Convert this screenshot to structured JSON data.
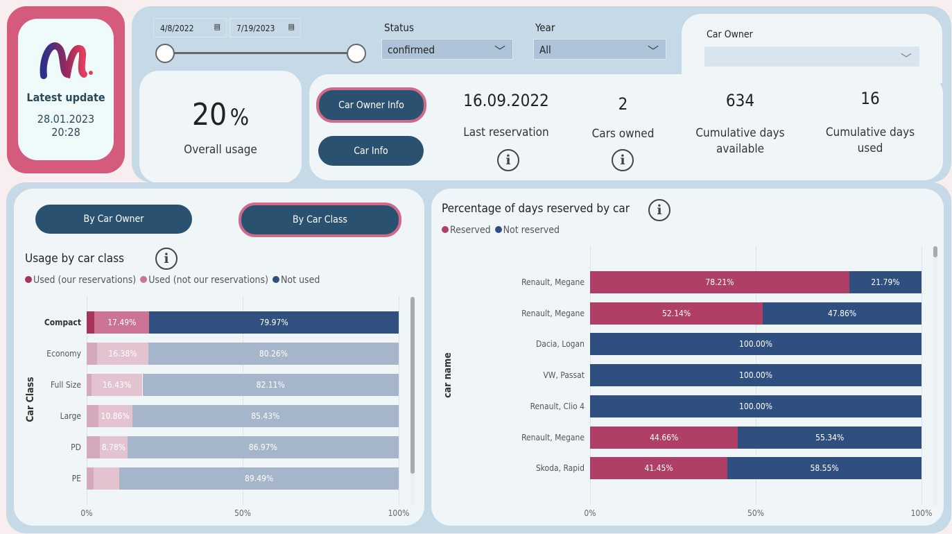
{
  "latest": {
    "label": "Latest update",
    "date": "28.01.2023",
    "time": "20:28"
  },
  "filters": {
    "date_from": "4/8/2022",
    "date_to": "7/19/2023",
    "status_label": "Status",
    "status_value": "confirmed",
    "year_label": "Year",
    "year_value": "All",
    "owner_label": "Car Owner",
    "owner_value": ""
  },
  "usage": {
    "value": "20",
    "unit": "%",
    "label": "Overall usage"
  },
  "buttons": {
    "owner_info": "Car Owner Info",
    "car_info": "Car Info",
    "by_owner": "By Car Owner",
    "by_class": "By Car Class"
  },
  "kpis": [
    {
      "value": "16.09.2022",
      "label": "Last reservation"
    },
    {
      "value": "2",
      "label": "Cars owned"
    },
    {
      "value": "634",
      "label": "Cumulative days available"
    },
    {
      "value": "16",
      "label": "Cumulative days used"
    }
  ],
  "colors": {
    "used_ours": "#a8345a",
    "used_other": "#cc7394",
    "not_used": "#30507f",
    "reserved": "#b03f66",
    "not_reserved": "#2f4f80"
  },
  "chart_data": [
    {
      "type": "bar",
      "stacked": "100%",
      "orientation": "horizontal",
      "title": "Usage by car class",
      "ylabel": "Car Class",
      "xlabel": "",
      "xlim": [
        0,
        100
      ],
      "xticks": [
        "0%",
        "50%",
        "100%"
      ],
      "legend": "top-left",
      "categories": [
        "Compact",
        "Economy",
        "Full Size",
        "Large",
        "PD",
        "PE"
      ],
      "highlighted": "Compact",
      "series": [
        {
          "name": "Used (our reservations)",
          "values": [
            2.54,
            3.36,
            1.46,
            3.71,
            4.25,
            2.3
          ]
        },
        {
          "name": "Used (not our reservations)",
          "values": [
            17.49,
            16.38,
            16.43,
            10.86,
            8.78,
            8.21
          ]
        },
        {
          "name": "Not used",
          "values": [
            79.97,
            80.26,
            82.11,
            85.43,
            86.97,
            89.49
          ]
        }
      ],
      "labels": [
        [
          "",
          "17.49%",
          "79.97%"
        ],
        [
          "",
          "16.38%",
          "80.26%"
        ],
        [
          "",
          "16.43%",
          "82.11%"
        ],
        [
          "",
          "10.86%",
          "85.43%"
        ],
        [
          "",
          "8.78%",
          "86.97%"
        ],
        [
          "",
          "",
          "89.49%"
        ]
      ]
    },
    {
      "type": "bar",
      "stacked": "100%",
      "orientation": "horizontal",
      "title": "Percentage of days reserved by car",
      "ylabel": "car name",
      "xlabel": "",
      "xlim": [
        0,
        100
      ],
      "xticks": [
        "0%",
        "50%",
        "100%"
      ],
      "legend": "top-left",
      "categories": [
        "Renault, Megane",
        "Renault, Megane",
        "Dacia, Logan",
        "VW, Passat",
        "Renault, Clio 4",
        "Renault, Megane",
        "Skoda, Rapid"
      ],
      "series": [
        {
          "name": "Reserved",
          "values": [
            78.21,
            52.14,
            0,
            0,
            0,
            44.66,
            41.45
          ]
        },
        {
          "name": "Not reserved",
          "values": [
            21.79,
            47.86,
            100,
            100,
            100,
            55.34,
            58.55
          ]
        }
      ],
      "labels": [
        [
          "78.21%",
          "21.79%"
        ],
        [
          "52.14%",
          "47.86%"
        ],
        [
          "",
          "100.00%"
        ],
        [
          "",
          "100.00%"
        ],
        [
          "",
          "100.00%"
        ],
        [
          "44.66%",
          "55.34%"
        ],
        [
          "41.45%",
          "58.55%"
        ]
      ]
    }
  ]
}
